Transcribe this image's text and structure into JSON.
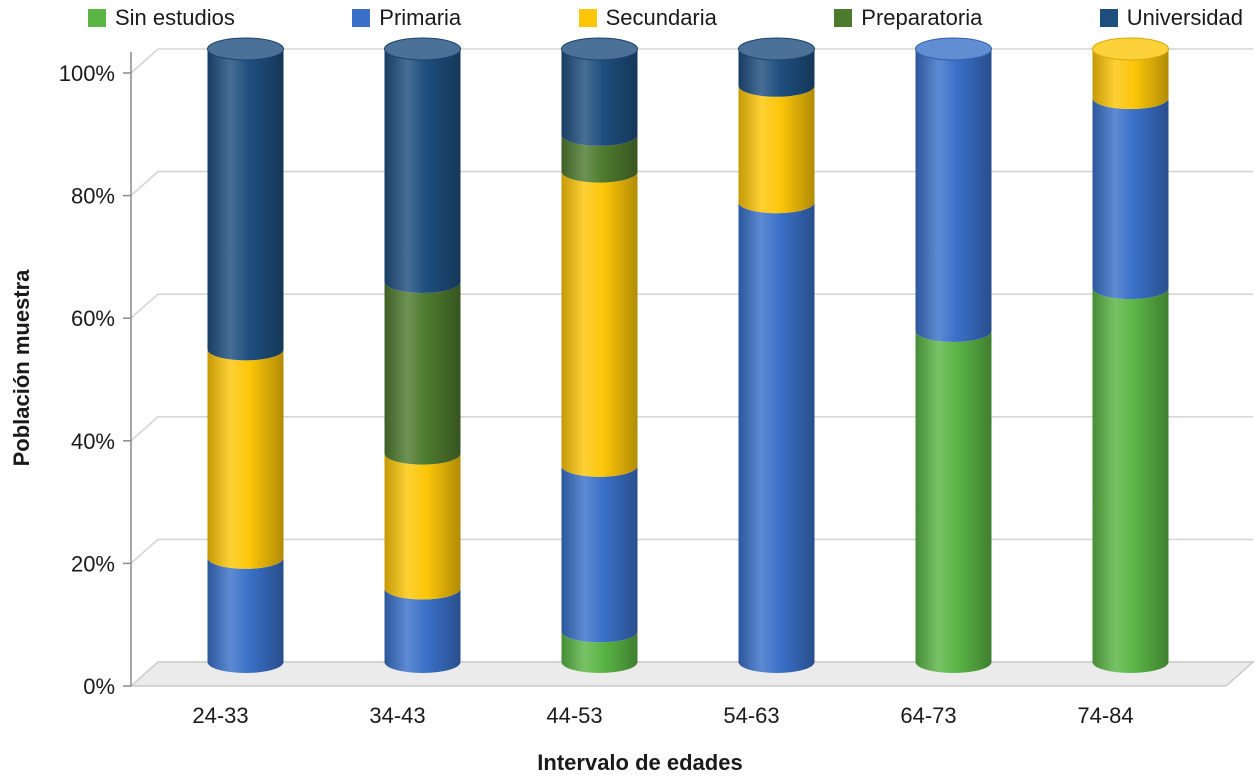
{
  "chart_data": {
    "type": "bar",
    "subtype": "100-percent-stacked-cylinder",
    "title": "",
    "xlabel": "Intervalo de edades",
    "ylabel": "Población muestra",
    "categories": [
      "24-33",
      "34-43",
      "44-53",
      "54-63",
      "64-73",
      "74-84"
    ],
    "y_ticks": [
      "0%",
      "20%",
      "40%",
      "60%",
      "80%",
      "100%"
    ],
    "ylim": [
      0,
      100
    ],
    "grid": true,
    "legend_position": "top",
    "series": [
      {
        "name": "Sin estudios",
        "color": "#5ab545",
        "values": [
          0,
          0,
          5,
          0,
          54,
          61
        ]
      },
      {
        "name": "Primaria",
        "color": "#3a70c8",
        "values": [
          17,
          12,
          27,
          75,
          46,
          31
        ]
      },
      {
        "name": "Secundaria",
        "color": "#fdc609",
        "values": [
          34,
          22,
          48,
          19,
          0,
          8
        ]
      },
      {
        "name": "Preparatoria",
        "color": "#4e7a2e",
        "values": [
          0,
          28,
          6,
          0,
          0,
          0
        ]
      },
      {
        "name": "Universidad",
        "color": "#1e4e7e",
        "values": [
          49,
          38,
          14,
          6,
          0,
          0
        ]
      }
    ]
  },
  "colors": {
    "grid": "#d6d6d6",
    "axis": "#8a8a8a",
    "floor_fill": "#ebebeb",
    "floor_stroke": "#c9c9c9",
    "text": "#1a1a1a"
  }
}
